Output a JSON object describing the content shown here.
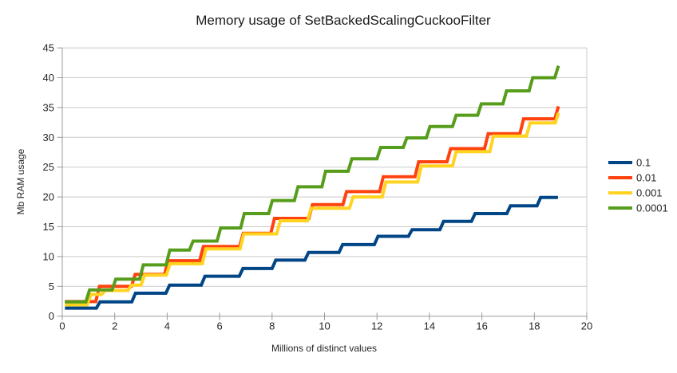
{
  "chart_data": {
    "type": "line",
    "style": "step",
    "title": "Memory usage of SetBackedScalingCuckooFilter",
    "xlabel": "Millions of distinct values",
    "ylabel": "Mb RAM usage",
    "xlim": [
      0,
      20
    ],
    "ylim": [
      0,
      45
    ],
    "xticks": [
      0,
      2,
      4,
      6,
      8,
      10,
      12,
      14,
      16,
      18,
      20
    ],
    "yticks": [
      0,
      5,
      10,
      15,
      20,
      25,
      30,
      35,
      40,
      45
    ],
    "grid": "horizontal-only",
    "legend_position": "right",
    "series": [
      {
        "name": "0.1",
        "color": "#004586",
        "start": [
          0.1,
          1.35
        ],
        "steps": [
          [
            1.3,
            2.4
          ],
          [
            2.65,
            3.85
          ],
          [
            3.95,
            5.2
          ],
          [
            5.3,
            6.7
          ],
          [
            6.75,
            8.0
          ],
          [
            8.0,
            9.4
          ],
          [
            9.25,
            10.7
          ],
          [
            10.55,
            12.0
          ],
          [
            11.9,
            13.4
          ],
          [
            13.2,
            14.5
          ],
          [
            14.4,
            15.9
          ],
          [
            15.6,
            17.2
          ],
          [
            16.95,
            18.5
          ],
          [
            18.1,
            19.9
          ]
        ],
        "end_x": 18.9
      },
      {
        "name": "0.01",
        "color": "#ff420e",
        "start": [
          0.1,
          2.45
        ],
        "steps": [
          [
            1.28,
            5.0
          ],
          [
            2.64,
            7.0
          ],
          [
            3.9,
            9.3
          ],
          [
            5.24,
            11.7
          ],
          [
            6.76,
            13.9
          ],
          [
            7.95,
            16.4
          ],
          [
            9.4,
            18.7
          ],
          [
            10.7,
            20.9
          ],
          [
            12.1,
            23.4
          ],
          [
            13.45,
            25.9
          ],
          [
            14.67,
            28.1
          ],
          [
            16.1,
            30.6
          ],
          [
            17.45,
            33.1
          ],
          [
            18.78,
            35.2
          ]
        ],
        "end_x": 18.92
      },
      {
        "name": "0.001",
        "color": "#ffd320",
        "start": [
          0.1,
          1.9
        ],
        "steps": [
          [
            0.95,
            3.65
          ],
          [
            1.5,
            4.3
          ],
          [
            2.5,
            5.2
          ],
          [
            3.0,
            6.9
          ],
          [
            3.97,
            8.8
          ],
          [
            5.34,
            11.3
          ],
          [
            6.78,
            13.8
          ],
          [
            8.17,
            16.0
          ],
          [
            9.35,
            18.1
          ],
          [
            10.95,
            20.0
          ],
          [
            12.2,
            22.5
          ],
          [
            13.55,
            25.2
          ],
          [
            14.88,
            27.6
          ],
          [
            16.3,
            30.2
          ],
          [
            17.7,
            32.4
          ],
          [
            18.8,
            34.1
          ]
        ],
        "end_x": 18.92
      },
      {
        "name": "0.0001",
        "color": "#579d1c",
        "start": [
          0.1,
          2.4
        ],
        "steps": [
          [
            0.9,
            4.4
          ],
          [
            1.9,
            6.2
          ],
          [
            2.95,
            8.6
          ],
          [
            3.96,
            11.1
          ],
          [
            4.85,
            12.6
          ],
          [
            5.9,
            14.8
          ],
          [
            6.8,
            17.2
          ],
          [
            7.87,
            19.4
          ],
          [
            8.85,
            21.7
          ],
          [
            9.9,
            24.3
          ],
          [
            10.9,
            26.4
          ],
          [
            12.0,
            28.3
          ],
          [
            13.0,
            29.9
          ],
          [
            13.88,
            31.8
          ],
          [
            14.88,
            33.7
          ],
          [
            15.84,
            35.6
          ],
          [
            16.8,
            37.8
          ],
          [
            17.8,
            40.0
          ],
          [
            18.78,
            42.0
          ]
        ],
        "end_x": 18.92
      }
    ]
  },
  "palette": {
    "gridline": "#c9c9c9",
    "axis": "#9b9b9b",
    "tick": "#9b9b9b",
    "label_text": "#262626",
    "title_text": "#1a1a1a",
    "background": "#ffffff"
  }
}
